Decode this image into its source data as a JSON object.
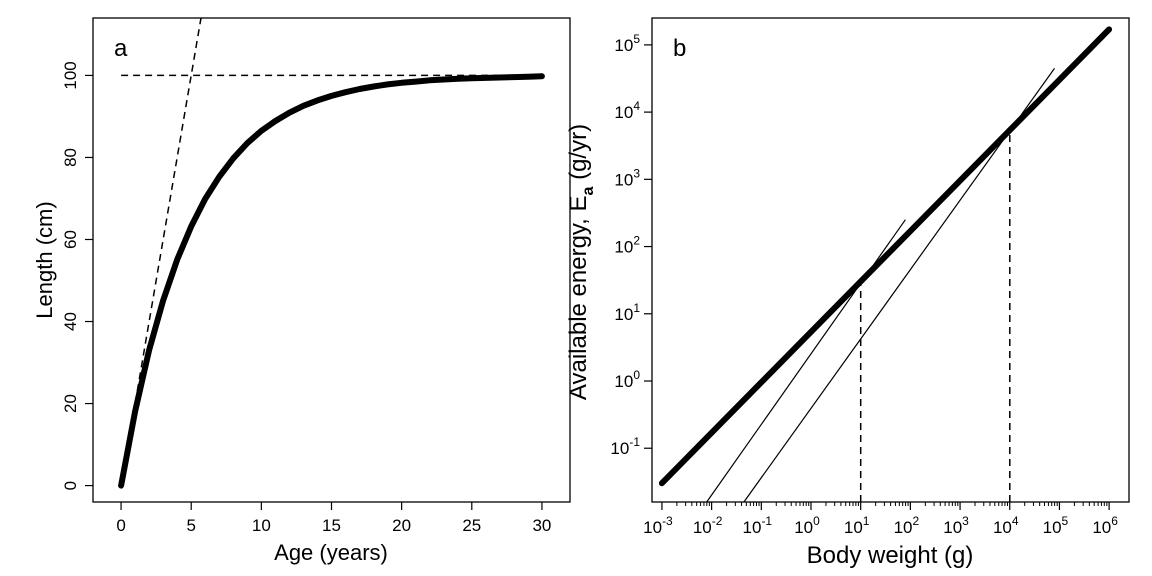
{
  "chart_data": [
    {
      "panel_label": "a",
      "type": "line",
      "xlabel": "Age (years)",
      "ylabel": "Length (cm)",
      "xlim": [
        -2,
        32
      ],
      "ylim": [
        -4,
        114
      ],
      "xticks": [
        0,
        5,
        10,
        15,
        20,
        25,
        30
      ],
      "yticks": [
        0,
        20,
        40,
        60,
        80,
        100
      ],
      "series": [
        {
          "style": "thick-solid",
          "x": [
            0,
            1,
            2,
            3,
            4,
            5,
            6,
            7,
            8,
            9,
            10,
            11,
            12,
            13,
            14,
            15,
            16,
            17,
            18,
            19,
            20,
            21,
            22,
            23,
            24,
            25,
            26,
            27,
            28,
            29,
            30
          ],
          "y": [
            0,
            18.1,
            33.0,
            45.1,
            55.1,
            63.2,
            69.9,
            75.3,
            79.8,
            83.5,
            86.5,
            88.9,
            90.9,
            92.6,
            93.9,
            95.0,
            95.9,
            96.7,
            97.3,
            97.8,
            98.2,
            98.5,
            98.8,
            99.0,
            99.2,
            99.3,
            99.4,
            99.5,
            99.6,
            99.7,
            99.8
          ]
        },
        {
          "style": "dashed",
          "x": [
            0,
            5.7
          ],
          "y": [
            0,
            114
          ]
        },
        {
          "style": "dashed",
          "x": [
            0,
            30
          ],
          "y": [
            100,
            100
          ]
        }
      ]
    },
    {
      "panel_label": "b",
      "type": "line",
      "scale": "log-log",
      "xlabel": "Body weight (g)",
      "ylabel_main": "Available energy, E",
      "ylabel_sub": "a",
      "ylabel_unit": " (g/yr)",
      "xlim_log10": [
        -3.2,
        6.4
      ],
      "ylim_log10": [
        -1.8,
        5.4
      ],
      "xticks_log10": [
        -3,
        -2,
        -1,
        0,
        1,
        2,
        3,
        4,
        5,
        6
      ],
      "yticks_log10": [
        -1,
        0,
        1,
        2,
        3,
        4,
        5
      ],
      "series": [
        {
          "style": "thick-solid",
          "x_log10": [
            -3,
            6
          ],
          "y_log10": [
            -1.52,
            5.23
          ]
        },
        {
          "style": "thin-solid",
          "x_log10": [
            -2.1,
            1.9
          ],
          "y_log10": [
            -1.8,
            2.4
          ]
        },
        {
          "style": "thin-solid",
          "x_log10": [
            -1.35,
            4.9
          ],
          "y_log10": [
            -1.8,
            4.65
          ]
        },
        {
          "style": "dashed",
          "x_log10": [
            1,
            1
          ],
          "y_log10": [
            -1.8,
            1.48
          ]
        },
        {
          "style": "dashed",
          "x_log10": [
            4,
            4
          ],
          "y_log10": [
            -1.8,
            3.73
          ]
        }
      ]
    }
  ]
}
